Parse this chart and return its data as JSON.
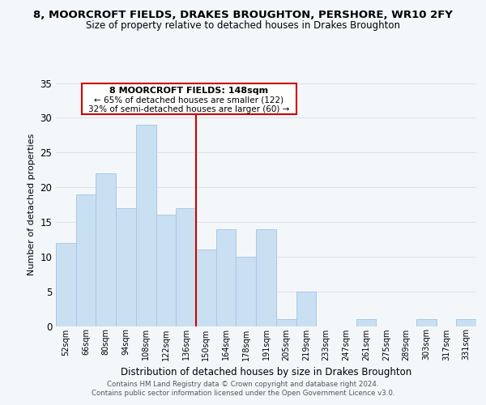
{
  "title": "8, MOORCROFT FIELDS, DRAKES BROUGHTON, PERSHORE, WR10 2FY",
  "subtitle": "Size of property relative to detached houses in Drakes Broughton",
  "xlabel": "Distribution of detached houses by size in Drakes Broughton",
  "ylabel": "Number of detached properties",
  "bar_color": "#c9dff2",
  "bar_edge_color": "#aac8e8",
  "bg_color": "#f4f7fa",
  "plot_bg_color": "#f4f7fa",
  "grid_color": "#dde4ec",
  "annotation_box_color": "#ffffff",
  "annotation_border_color": "#cc0000",
  "marker_line_color": "#cc0000",
  "categories": [
    "52sqm",
    "66sqm",
    "80sqm",
    "94sqm",
    "108sqm",
    "122sqm",
    "136sqm",
    "150sqm",
    "164sqm",
    "178sqm",
    "191sqm",
    "205sqm",
    "219sqm",
    "233sqm",
    "247sqm",
    "261sqm",
    "275sqm",
    "289sqm",
    "303sqm",
    "317sqm",
    "331sqm"
  ],
  "values": [
    12,
    19,
    22,
    17,
    29,
    16,
    17,
    11,
    14,
    10,
    14,
    1,
    5,
    0,
    0,
    1,
    0,
    0,
    1,
    0,
    1
  ],
  "ylim": [
    0,
    35
  ],
  "yticks": [
    0,
    5,
    10,
    15,
    20,
    25,
    30,
    35
  ],
  "marker_category_index": 7,
  "annotation_text_line1": "8 MOORCROFT FIELDS: 148sqm",
  "annotation_text_line2": "← 65% of detached houses are smaller (122)",
  "annotation_text_line3": "32% of semi-detached houses are larger (60) →",
  "footer_line1": "Contains HM Land Registry data © Crown copyright and database right 2024.",
  "footer_line2": "Contains public sector information licensed under the Open Government Licence v3.0."
}
